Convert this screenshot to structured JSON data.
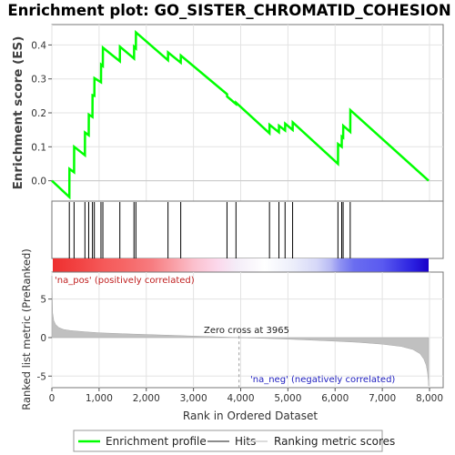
{
  "title": "Enrichment plot: GO_SISTER_CHROMATID_COHESION",
  "es_ylabel": "Enrichment score (ES)",
  "rank_ylabel": "Ranked list metric (PreRanked)",
  "xlabel": "Rank in Ordered Dataset",
  "pos_label": "'na_pos' (positively correlated)",
  "neg_label": "'na_neg' (negatively correlated)",
  "zero_cross_label": "Zero cross at 3965",
  "legend": {
    "enrichment": "Enrichment profile",
    "hits": "Hits",
    "ranking": "Ranking metric scores"
  },
  "colors": {
    "enrichment_line": "#00ff00",
    "hit_line": "#000000",
    "metric_fill": "#c0c0c0",
    "pos_color": "#ff0000",
    "neg_color": "#0000ff"
  },
  "chart_data": {
    "type": "line",
    "x_ticks": [
      0,
      1000,
      2000,
      3000,
      4000,
      5000,
      6000,
      7000,
      8000
    ],
    "x_tick_labels": [
      "0",
      "1,000",
      "2,000",
      "3,000",
      "4,000",
      "5,000",
      "6,000",
      "7,000",
      "8,000"
    ],
    "xlim": [
      0,
      8000
    ],
    "es_ylim": [
      -0.06,
      0.46
    ],
    "es_y_ticks": [
      0.0,
      0.1,
      0.2,
      0.3,
      0.4
    ],
    "es_y_tick_labels": [
      "0.0",
      "0.1",
      "0.2",
      "0.3",
      "0.4"
    ],
    "rank_ylim": [
      -6.5,
      8.5
    ],
    "rank_y_ticks": [
      -5,
      0,
      5
    ],
    "rank_y_tick_labels": [
      "-5",
      "0",
      "5"
    ],
    "zero_cross": 3965,
    "n_genes": 7980,
    "hits": [
      370,
      470,
      700,
      780,
      860,
      900,
      1040,
      1080,
      1440,
      1740,
      1780,
      2460,
      2730,
      3710,
      3900,
      4610,
      4810,
      4940,
      5100,
      6060,
      6140,
      6170,
      6320
    ],
    "es_start": 0.0,
    "es_end": 0.0,
    "es_peak": 0.437,
    "es_points": [
      [
        0,
        0.0
      ],
      [
        370,
        -0.048
      ],
      [
        372,
        0.035
      ],
      [
        470,
        0.025
      ],
      [
        472,
        0.1
      ],
      [
        700,
        0.075
      ],
      [
        702,
        0.142
      ],
      [
        780,
        0.134
      ],
      [
        782,
        0.195
      ],
      [
        860,
        0.188
      ],
      [
        862,
        0.252
      ],
      [
        900,
        0.25
      ],
      [
        902,
        0.302
      ],
      [
        1040,
        0.29
      ],
      [
        1042,
        0.342
      ],
      [
        1080,
        0.338
      ],
      [
        1082,
        0.392
      ],
      [
        1440,
        0.352
      ],
      [
        1442,
        0.395
      ],
      [
        1740,
        0.36
      ],
      [
        1742,
        0.395
      ],
      [
        1780,
        0.39
      ],
      [
        1782,
        0.437
      ],
      [
        2460,
        0.355
      ],
      [
        2462,
        0.378
      ],
      [
        2730,
        0.348
      ],
      [
        2732,
        0.369
      ],
      [
        3710,
        0.255
      ],
      [
        3712,
        0.248
      ],
      [
        3900,
        0.226
      ],
      [
        3902,
        0.23
      ],
      [
        4610,
        0.14
      ],
      [
        4612,
        0.165
      ],
      [
        4810,
        0.143
      ],
      [
        4812,
        0.162
      ],
      [
        4940,
        0.148
      ],
      [
        4942,
        0.168
      ],
      [
        5100,
        0.15
      ],
      [
        5102,
        0.172
      ],
      [
        6060,
        0.05
      ],
      [
        6062,
        0.108
      ],
      [
        6140,
        0.1
      ],
      [
        6142,
        0.13
      ],
      [
        6170,
        0.127
      ],
      [
        6172,
        0.162
      ],
      [
        6320,
        0.144
      ],
      [
        6322,
        0.208
      ],
      [
        7980,
        0.0
      ]
    ],
    "metric_profile": [
      [
        0,
        8.0
      ],
      [
        15,
        3.2
      ],
      [
        40,
        2.2
      ],
      [
        80,
        1.7
      ],
      [
        150,
        1.3
      ],
      [
        250,
        1.05
      ],
      [
        400,
        0.9
      ],
      [
        700,
        0.75
      ],
      [
        1000,
        0.62
      ],
      [
        1500,
        0.5
      ],
      [
        2000,
        0.4
      ],
      [
        2500,
        0.3
      ],
      [
        3000,
        0.2
      ],
      [
        3500,
        0.1
      ],
      [
        3965,
        0.0
      ],
      [
        4500,
        -0.1
      ],
      [
        5000,
        -0.2
      ],
      [
        5500,
        -0.33
      ],
      [
        6000,
        -0.46
      ],
      [
        6500,
        -0.62
      ],
      [
        7000,
        -0.85
      ],
      [
        7400,
        -1.15
      ],
      [
        7650,
        -1.55
      ],
      [
        7800,
        -2.1
      ],
      [
        7880,
        -2.8
      ],
      [
        7930,
        -3.6
      ],
      [
        7960,
        -4.6
      ],
      [
        7975,
        -5.6
      ],
      [
        7980,
        -6.3
      ]
    ],
    "color_bar_stops": [
      [
        0,
        "#ee3030"
      ],
      [
        600,
        "#f24545"
      ],
      [
        1100,
        "#f55a5a"
      ],
      [
        1500,
        "#f66565"
      ],
      [
        2100,
        "#f77c80"
      ],
      [
        2500,
        "#f99aa0"
      ],
      [
        3000,
        "#fbc0cd"
      ],
      [
        3500,
        "#fcd8ec"
      ],
      [
        3900,
        "#f4edf8"
      ],
      [
        4500,
        "#ffffff"
      ],
      [
        5100,
        "#eceefa"
      ],
      [
        5600,
        "#d6d8f8"
      ],
      [
        5900,
        "#b8bbf4"
      ],
      [
        6100,
        "#8f92f2"
      ],
      [
        6400,
        "#6a6df0"
      ],
      [
        7000,
        "#5a5af0"
      ],
      [
        7650,
        "#2a20e0"
      ],
      [
        7980,
        "#1a00c8"
      ]
    ]
  }
}
